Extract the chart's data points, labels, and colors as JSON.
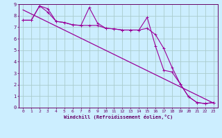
{
  "bg_color": "#cceeff",
  "line_color": "#990099",
  "grid_color": "#aacccc",
  "xlabel": "Windchill (Refroidissement éolien,°C)",
  "xlabel_color": "#660066",
  "tick_color": "#660066",
  "xlim": [
    -0.5,
    23.5
  ],
  "ylim": [
    0,
    9
  ],
  "xticks": [
    0,
    1,
    2,
    3,
    4,
    5,
    6,
    7,
    8,
    9,
    10,
    11,
    12,
    13,
    14,
    15,
    16,
    17,
    18,
    19,
    20,
    21,
    22,
    23
  ],
  "yticks": [
    0,
    1,
    2,
    3,
    4,
    5,
    6,
    7,
    8,
    9
  ],
  "line1_x": [
    0,
    1,
    2,
    3,
    4,
    5,
    6,
    7,
    8,
    9,
    10,
    11,
    12,
    13,
    14,
    15,
    16,
    17,
    18,
    19,
    20,
    21,
    22,
    23
  ],
  "line1_y": [
    7.6,
    7.6,
    8.85,
    8.6,
    7.5,
    7.4,
    7.2,
    7.15,
    8.7,
    7.35,
    6.9,
    6.85,
    6.75,
    6.75,
    6.75,
    7.85,
    5.35,
    3.25,
    3.1,
    2.05,
    0.95,
    0.45,
    0.35,
    0.45
  ],
  "line2_x": [
    0,
    1,
    2,
    3,
    4,
    5,
    6,
    7,
    8,
    9,
    10,
    11,
    12,
    13,
    14,
    15,
    16,
    17,
    18,
    19,
    20,
    21,
    22,
    23
  ],
  "line2_y": [
    7.6,
    7.6,
    8.85,
    8.3,
    7.5,
    7.4,
    7.2,
    7.15,
    7.15,
    7.15,
    6.9,
    6.85,
    6.75,
    6.75,
    6.75,
    6.9,
    6.35,
    5.15,
    3.5,
    2.05,
    0.95,
    0.45,
    0.35,
    0.45
  ],
  "line3_x": [
    0,
    23
  ],
  "line3_y": [
    8.5,
    0.4
  ]
}
